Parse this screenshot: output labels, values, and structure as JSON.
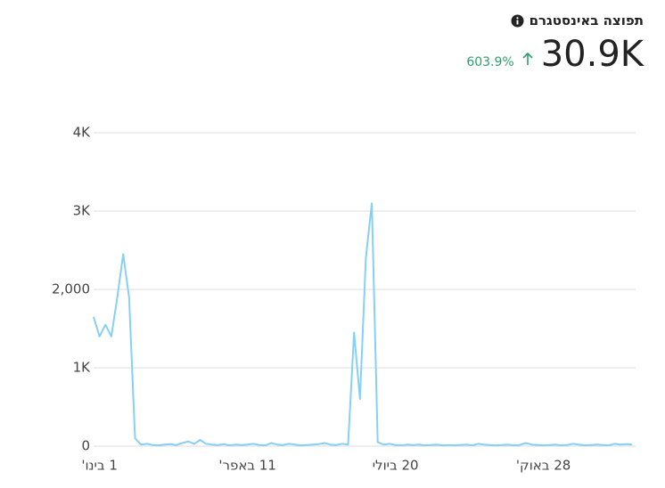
{
  "header": {
    "title": "תפוצה באינסטגרם",
    "value": "30.9K",
    "change": "603.9%"
  },
  "chart_data": {
    "type": "line",
    "categories": [
      null,
      "1 בינו'",
      null,
      null,
      null,
      null,
      null,
      null,
      null,
      null,
      null,
      null,
      null,
      null,
      null,
      null,
      null,
      null,
      null,
      null,
      null,
      null,
      null,
      null,
      null,
      null,
      "11 באפר'",
      null,
      null,
      null,
      null,
      null,
      null,
      null,
      null,
      null,
      null,
      null,
      null,
      null,
      null,
      null,
      null,
      null,
      null,
      null,
      null,
      null,
      null,
      null,
      null,
      "20 ביולי",
      null,
      null,
      null,
      null,
      null,
      null,
      null,
      null,
      null,
      null,
      null,
      null,
      null,
      null,
      null,
      null,
      null,
      null,
      null,
      null,
      null,
      null,
      null,
      null,
      "28 באוק'",
      null,
      null,
      null,
      null,
      null,
      null,
      null,
      null,
      null,
      null,
      null,
      null,
      null,
      null,
      null
    ],
    "series": [
      {
        "name": "תפוצה באינסטגרם",
        "color": "#86d0f5",
        "values": [
          1650,
          1400,
          1550,
          1400,
          1900,
          2450,
          1900,
          100,
          20,
          30,
          15,
          10,
          20,
          25,
          15,
          40,
          60,
          30,
          80,
          30,
          20,
          15,
          25,
          10,
          20,
          15,
          20,
          30,
          15,
          10,
          40,
          20,
          15,
          30,
          20,
          10,
          15,
          20,
          25,
          40,
          20,
          15,
          30,
          20,
          1450,
          600,
          2400,
          3100,
          50,
          20,
          30,
          15,
          10,
          20,
          15,
          20,
          10,
          15,
          20,
          10,
          15,
          10,
          15,
          20,
          10,
          30,
          20,
          15,
          10,
          15,
          20,
          10,
          15,
          40,
          20,
          15,
          10,
          15,
          20,
          10,
          15,
          30,
          20,
          10,
          15,
          20,
          15,
          10,
          30,
          20,
          25,
          20
        ]
      }
    ],
    "ylim": [
      0,
      4000
    ],
    "yticks": [
      0,
      {
        "value": 1000,
        "label": "1K"
      },
      {
        "value": 2000,
        "label": "2,000"
      },
      {
        "value": 3000,
        "label": "3K"
      },
      {
        "value": 4000,
        "label": "4K"
      }
    ],
    "grid": true
  }
}
